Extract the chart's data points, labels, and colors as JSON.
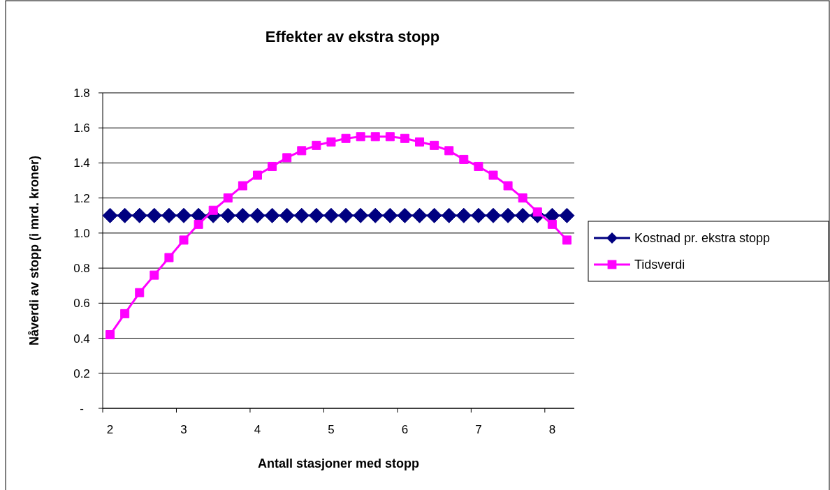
{
  "chart_data": {
    "type": "line",
    "title": "Effekter av ekstra stopp",
    "xlabel": "Antall stasjoner med stopp",
    "ylabel": "Nåverdi av stopp (i mrd. kroner)",
    "categories": [
      "2",
      null,
      null,
      null,
      null,
      "3",
      null,
      null,
      null,
      null,
      "4",
      null,
      null,
      null,
      null,
      "5",
      null,
      null,
      null,
      null,
      "6",
      null,
      null,
      null,
      null,
      "7",
      null,
      null,
      null,
      null,
      "8",
      null
    ],
    "series": [
      {
        "name": "Kostnad pr. ekstra stopp",
        "color": "#000080",
        "marker": "diamond",
        "values": [
          1.1,
          1.1,
          1.1,
          1.1,
          1.1,
          1.1,
          1.1,
          1.1,
          1.1,
          1.1,
          1.1,
          1.1,
          1.1,
          1.1,
          1.1,
          1.1,
          1.1,
          1.1,
          1.1,
          1.1,
          1.1,
          1.1,
          1.1,
          1.1,
          1.1,
          1.1,
          1.1,
          1.1,
          1.1,
          1.1,
          1.1,
          1.1
        ]
      },
      {
        "name": "Tidsverdi",
        "color": "#ff00ff",
        "marker": "square",
        "values": [
          0.42,
          0.54,
          0.66,
          0.76,
          0.86,
          0.96,
          1.05,
          1.13,
          1.2,
          1.27,
          1.33,
          1.38,
          1.43,
          1.47,
          1.5,
          1.52,
          1.54,
          1.55,
          1.55,
          1.55,
          1.54,
          1.52,
          1.5,
          1.47,
          1.42,
          1.38,
          1.33,
          1.27,
          1.2,
          1.12,
          1.05,
          0.96
        ]
      }
    ],
    "ylim": [
      0,
      1.8
    ],
    "yticks": [
      {
        "value": 0,
        "label": "-"
      },
      0.2,
      0.4,
      0.6,
      0.8,
      {
        "value": 1,
        "label": "1.0"
      },
      1.2,
      1.4,
      1.6,
      1.8
    ],
    "grid": "y",
    "legend": "right",
    "line_style": "solid"
  }
}
